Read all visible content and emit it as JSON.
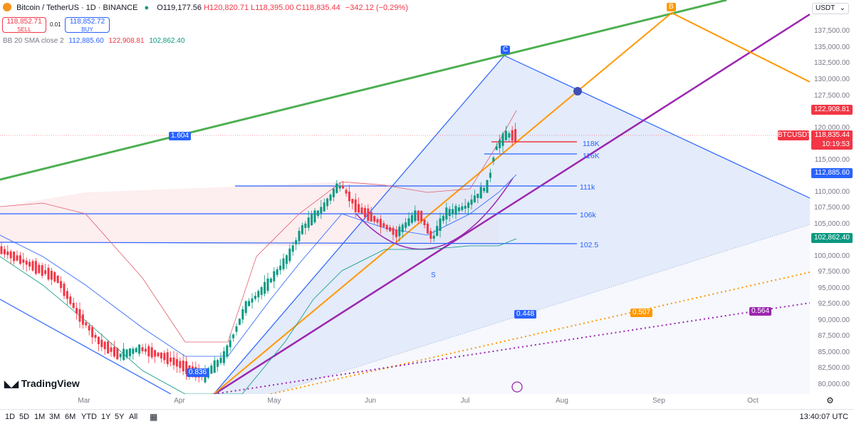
{
  "header": {
    "symbol": "Bitcoin / TetherUS · 1D · BINANCE",
    "open": "O119,177.56",
    "high": "H120,820.71",
    "low": "L118,395.00",
    "close": "C118,835.44",
    "change": "−342.12 (−0.29%)"
  },
  "trade": {
    "sell_price": "118,852.71",
    "sell_label": "SELL",
    "buy_price": "118,852.72",
    "buy_label": "BUY",
    "spread": "0.01"
  },
  "indicator": {
    "name": "BB 20 SMA close 2",
    "basis": "112,885.60",
    "upper": "122,908.81",
    "lower": "102,862.40"
  },
  "currency": "USDT",
  "price_axis": {
    "ticks": [
      "137,500.00",
      "135,000.00",
      "132,500.00",
      "130,000.00",
      "127,500.00",
      "125,000.00",
      "120,000.00",
      "117,500.00",
      "115,000.00",
      "110,000.00",
      "107,500.00",
      "105,000.00",
      "100,000.00",
      "97,500.00",
      "95,000.00",
      "92,500.00",
      "90,000.00",
      "87,500.00",
      "85,000.00",
      "82,500.00",
      "80,000.00"
    ],
    "upper_band": "122,908.81",
    "symbol_tag": "BTCUSDT",
    "last_price": "118,835.44",
    "countdown": "10:19:53",
    "basis": "112,885.60",
    "lower_band": "102,862.40"
  },
  "time_axis": [
    "Mar",
    "Apr",
    "May",
    "Jun",
    "Jul",
    "Aug",
    "Sep",
    "Oct"
  ],
  "timeframes": [
    "1D",
    "5D",
    "1M",
    "3M",
    "6M",
    "YTD",
    "1Y",
    "5Y",
    "All"
  ],
  "clock": "13:40:07 UTC",
  "drawings": {
    "levels": [
      "118K",
      "116K",
      "111k",
      "106k",
      "102.5"
    ],
    "point_c": "C",
    "point_b": "B",
    "point_s": "S",
    "fib_green": "1.604",
    "fib_blue": "0.448",
    "fib_orange": "0.507",
    "fib_purple": "0.564",
    "fib_lower": "0.836"
  },
  "branding": "TradingView",
  "colors": {
    "green_trend": "#4caf50",
    "purple_trend": "#9c27b0",
    "orange_trend": "#ff9800",
    "blue_line": "#2962ff",
    "down_candle": "#f23645",
    "up_candle": "#089981",
    "triangle_fill": "#dbe4f8",
    "bb_fill": "#fbe3e6"
  }
}
